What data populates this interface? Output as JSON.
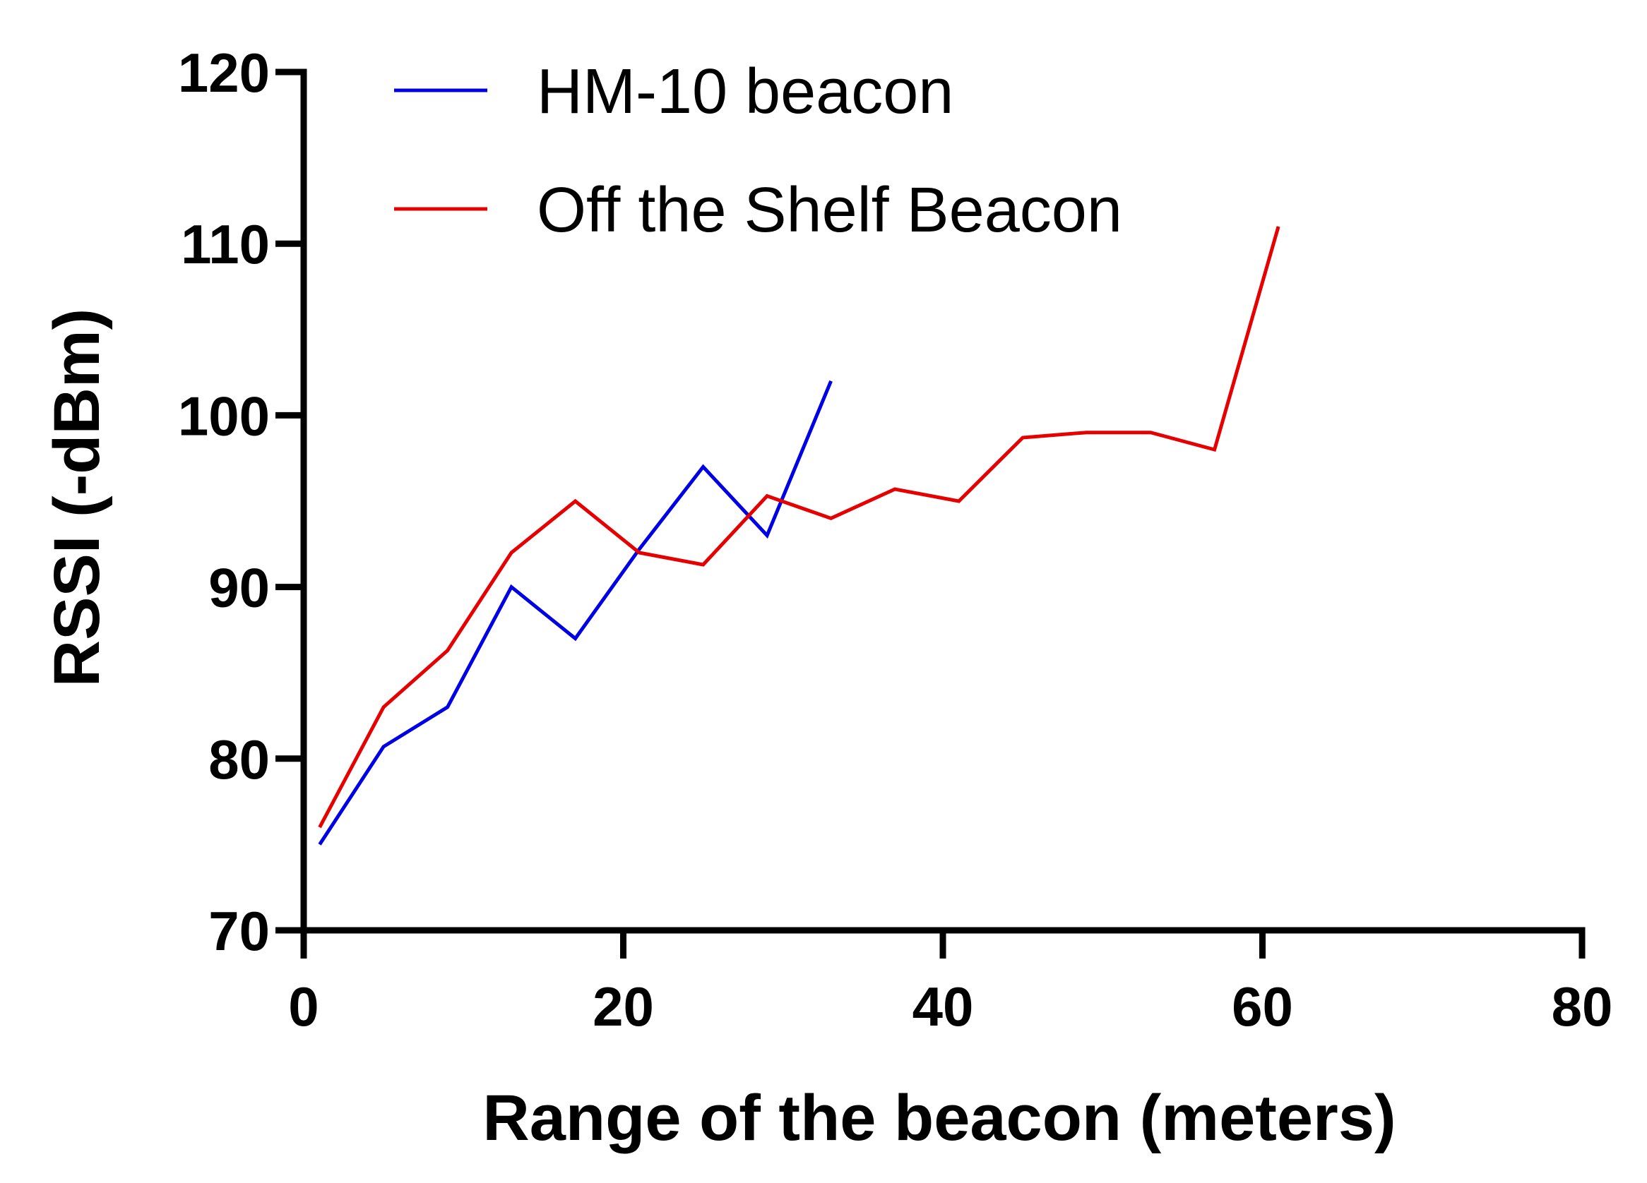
{
  "chart_data": {
    "type": "line",
    "title": "",
    "xlabel": "Range of the beacon (meters)",
    "ylabel": "RSSI (-dBm)",
    "xlim": [
      0,
      80
    ],
    "ylim": [
      70,
      120
    ],
    "xticks": [
      "0",
      "20",
      "40",
      "60",
      "80"
    ],
    "yticks": [
      "70",
      "80",
      "90",
      "100",
      "110",
      "120"
    ],
    "grid": false,
    "legend_position": "top-left",
    "series": [
      {
        "name": "HM-10 beacon",
        "color": "#0000e6",
        "x": [
          1,
          5,
          9,
          13,
          17,
          21,
          25,
          29,
          33
        ],
        "y": [
          75,
          80.7,
          83,
          90,
          87,
          92.2,
          97,
          93,
          102
        ]
      },
      {
        "name": "Off the Shelf Beacon",
        "color": "#e60000",
        "x": [
          1,
          5,
          9,
          13,
          17,
          21,
          25,
          29,
          33,
          37,
          41,
          45,
          49,
          53,
          57,
          61
        ],
        "y": [
          76,
          83,
          86.3,
          92,
          95,
          92,
          91.3,
          95.3,
          94,
          95.7,
          95,
          98.7,
          99,
          99,
          98,
          111
        ]
      }
    ]
  }
}
